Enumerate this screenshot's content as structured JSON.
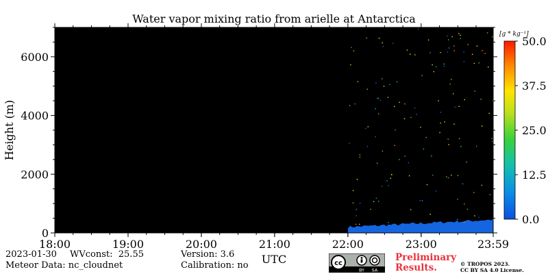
{
  "chart_data": {
    "type": "heatmap",
    "title": "Water vapor mixing ratio from arielle at Antarctica",
    "xlabel": "UTC",
    "ylabel": "Height (m)",
    "x_range": [
      "18:00",
      "23:59"
    ],
    "x_ticks": [
      "18:00",
      "19:00",
      "20:00",
      "21:00",
      "22:00",
      "23:00",
      "23:59"
    ],
    "y_range": [
      0,
      7000
    ],
    "y_ticks": [
      0,
      2000,
      4000,
      6000
    ],
    "y_tick_labels": [
      "0",
      "2000",
      "4000",
      "6000"
    ],
    "colorbar": {
      "unit": "[g * kg⁻¹]",
      "range": [
        0.0,
        50.0
      ],
      "ticks": [
        0.0,
        12.5,
        25.0,
        37.5,
        50.0
      ],
      "tick_labels": [
        "0.0",
        "12.5",
        "25.0",
        "37.5",
        "50.0"
      ],
      "colormap": "jet"
    },
    "no_data_color": "#000000",
    "data_coverage": {
      "start_utc": "22:00",
      "end_utc": "23:59"
    },
    "surface_layer": {
      "top_height_m_start": 200,
      "top_height_m_end": 450,
      "value_g_per_kg": 5.0
    },
    "scatter_noise": "sparse single-pixel values throughout 0–7000 m after 22:00"
  },
  "footer": {
    "date": "2023-01-30",
    "wvconst": "WVconst:  25.55",
    "meteor": "Meteor Data: nc_cloudnet",
    "version": "Version: 3.6",
    "calibration": "Calibration: no",
    "preliminary": [
      "Preliminary",
      "Results."
    ],
    "license_lines": [
      "© TROPOS 2023.",
      "CC BY SA 4.0 License."
    ],
    "badge": {
      "cc": "cc",
      "by": "BY",
      "sa": "SA"
    }
  }
}
